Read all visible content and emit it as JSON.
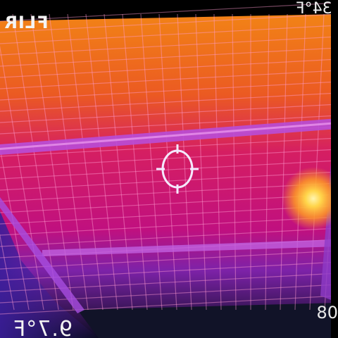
{
  "overlay": {
    "logo_text": "FLIR",
    "top_right_text": "34°F",
    "bottom_left_text": "9.7°F",
    "bottom_right_text": "80"
  },
  "colors": {
    "hot": "#ffd54a",
    "warm": "#f06a1c",
    "mid": "#d0187a",
    "cool": "#5b24a8",
    "cold": "#0a0d24"
  },
  "icons": {
    "crosshair": "crosshair-icon"
  }
}
